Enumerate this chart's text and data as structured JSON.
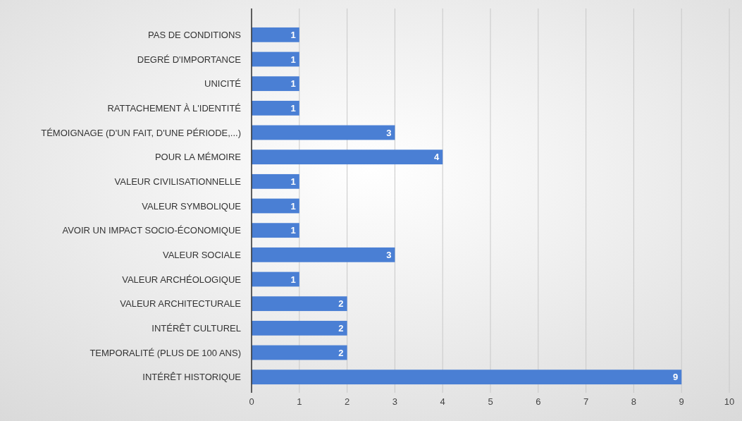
{
  "chart_data": {
    "type": "bar",
    "orientation": "horizontal",
    "categories": [
      "PAS DE CONDITIONS",
      "DEGRÉ D'IMPORTANCE",
      "UNICITÉ",
      "RATTACHEMENT À L'IDENTITÉ",
      "TÉMOIGNAGE (D'UN FAIT, D'UNE PÉRIODE,...)",
      "POUR LA MÉMOIRE",
      "VALEUR CIVILISATIONNELLE",
      "VALEUR SYMBOLIQUE",
      "AVOIR UN IMPACT SOCIO-ÉCONOMIQUE",
      "VALEUR SOCIALE",
      "VALEUR ARCHÉOLOGIQUE",
      "VALEUR ARCHITECTURALE",
      "INTÉRÊT CULTUREL",
      "TEMPORALITÉ (PLUS DE 100 ANS)",
      "INTÉRÊT HISTORIQUE"
    ],
    "values": [
      1,
      1,
      1,
      1,
      3,
      4,
      1,
      1,
      1,
      3,
      1,
      2,
      2,
      2,
      9
    ],
    "color": "#4a7fd4",
    "xlim": [
      0,
      10
    ],
    "xticks": [
      0,
      1,
      2,
      3,
      4,
      5,
      6,
      7,
      8,
      9,
      10
    ],
    "grid": "x",
    "data_labels": true
  }
}
